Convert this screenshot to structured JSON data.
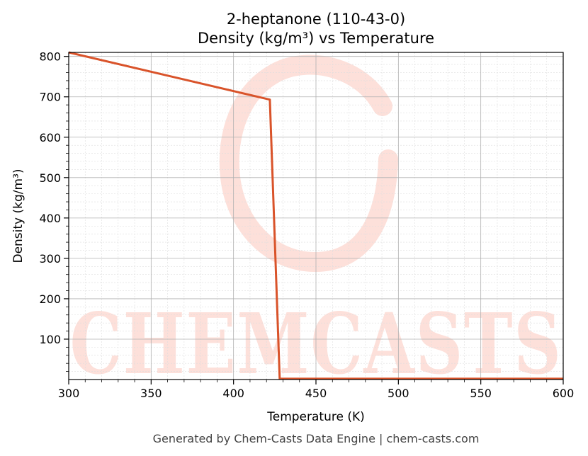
{
  "chart_data": {
    "type": "line",
    "title": "2-heptanone (110-43-0)",
    "subtitle": "Density (kg/m³) vs Temperature",
    "xlabel": "Temperature (K)",
    "ylabel": "Density (kg/m³)",
    "xlim": [
      300,
      600
    ],
    "ylim": [
      0,
      810
    ],
    "xticks": [
      300,
      350,
      400,
      450,
      500,
      550,
      600
    ],
    "yticks": [
      100,
      200,
      300,
      400,
      500,
      600,
      700,
      800
    ],
    "grid": true,
    "line_color": "#d9532a",
    "series": [
      {
        "x": [
          300,
          422,
          428,
          430,
          600
        ],
        "y": [
          810,
          693,
          2,
          2,
          2
        ]
      }
    ]
  },
  "footer": "Generated by Chem-Casts Data Engine | chem-casts.com",
  "watermark": {
    "text": "CHEMCASTS",
    "color": "#fde0da"
  }
}
